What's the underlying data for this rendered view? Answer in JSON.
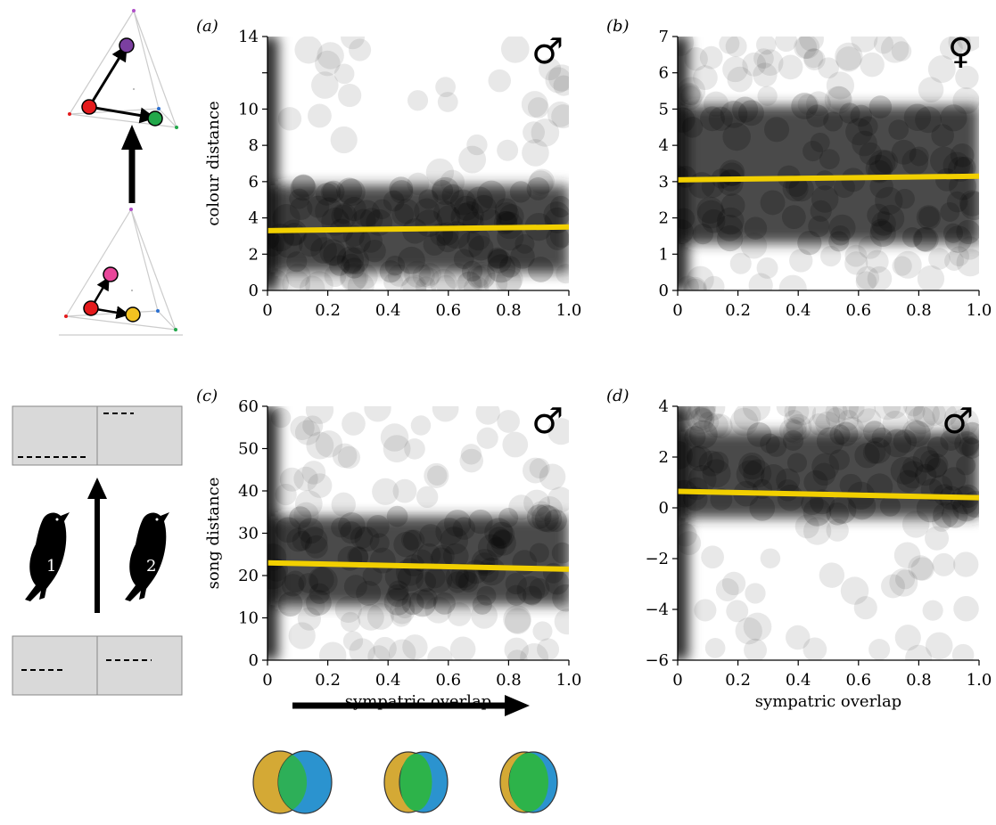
{
  "chart_data": [
    {
      "panel": "(a)",
      "type": "scatter",
      "sex_symbol": "♂",
      "ylabel": "colour distance",
      "xlabel": "",
      "xlim": [
        0,
        1.0
      ],
      "ylim": [
        0,
        14
      ],
      "xticks": [
        "0",
        "0.2",
        "0.4",
        "0.6",
        "0.8",
        "1.0"
      ],
      "yticks": [
        "0",
        "2",
        "4",
        "6",
        "8",
        "10",
        "",
        "14"
      ],
      "yticks_values": [
        0,
        2,
        4,
        6,
        8,
        10,
        12,
        14
      ],
      "band": [
        1,
        5.8
      ],
      "fit_line": {
        "x": [
          0,
          1.0
        ],
        "y": [
          3.3,
          3.5
        ],
        "color": "#f2d000"
      }
    },
    {
      "panel": "(b)",
      "type": "scatter",
      "sex_symbol": "♀",
      "ylabel": "",
      "xlabel": "",
      "xlim": [
        0,
        1.0
      ],
      "ylim": [
        0,
        7
      ],
      "xticks": [
        "0",
        "0.2",
        "0.4",
        "0.6",
        "0.8",
        "1.0"
      ],
      "yticks": [
        "0",
        "1",
        "2",
        "3",
        "4",
        "5",
        "6",
        "7"
      ],
      "yticks_values": [
        0,
        1,
        2,
        3,
        4,
        5,
        6,
        7
      ],
      "band": [
        1.3,
        5.1
      ],
      "fit_line": {
        "x": [
          0,
          1.0
        ],
        "y": [
          3.05,
          3.15
        ],
        "color": "#f2d000"
      }
    },
    {
      "panel": "(c)",
      "type": "scatter",
      "sex_symbol": "♂",
      "ylabel": "song distance",
      "xlabel": "sympatric overlap",
      "xlim": [
        0,
        1.0
      ],
      "ylim": [
        0,
        60
      ],
      "xticks": [
        "0",
        "0.2",
        "0.4",
        "0.6",
        "0.8",
        "1.0"
      ],
      "yticks": [
        "0",
        "10",
        "20",
        "30",
        "40",
        "50",
        "60"
      ],
      "yticks_values": [
        0,
        10,
        20,
        30,
        40,
        50,
        60
      ],
      "band": [
        13,
        34
      ],
      "fit_line": {
        "x": [
          0,
          1.0
        ],
        "y": [
          23,
          21.5
        ],
        "color": "#f2d000"
      }
    },
    {
      "panel": "(d)",
      "type": "scatter",
      "sex_symbol": "♂",
      "ylabel": "",
      "xlabel": "sympatric overlap",
      "xlim": [
        0,
        1.0
      ],
      "ylim": [
        -6,
        4
      ],
      "xticks": [
        "0",
        "0.2",
        "0.4",
        "0.6",
        "0.8",
        "1.0"
      ],
      "yticks": [
        "−6",
        "−4",
        "−2",
        "0",
        "2",
        "4"
      ],
      "yticks_values": [
        -6,
        -4,
        -2,
        0,
        2,
        4
      ],
      "band": [
        -0.4,
        3.0
      ],
      "fit_line": {
        "x": [
          0,
          1.0
        ],
        "y": [
          0.65,
          0.4
        ],
        "color": "#f2d000"
      }
    }
  ],
  "schematic": {
    "song_birds": [
      "1",
      "2"
    ],
    "colour_points_top": [
      "#e41a1c",
      "#7b3fa0",
      "#22a84a"
    ],
    "colour_points_bottom": [
      "#e41a1c",
      "#e8479a",
      "#f3c221"
    ],
    "venn_colors": {
      "left": "#d4a935",
      "right": "#2b93cf",
      "overlap": "#2db34a"
    }
  }
}
